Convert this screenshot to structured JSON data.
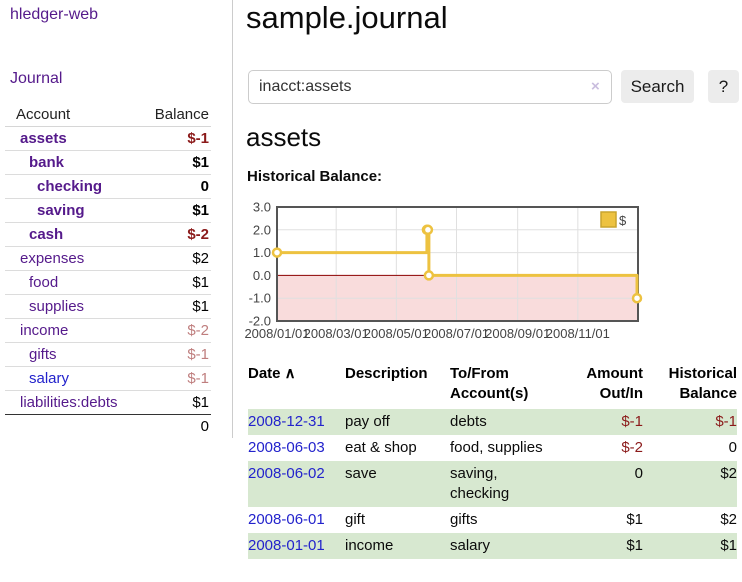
{
  "app": {
    "title": "hledger-web",
    "nav_journal": "Journal"
  },
  "colors": {
    "link_purple": "#551a8b",
    "link_blue": "#2323cc",
    "negative_strong": "#8b1a1a",
    "negative_soft": "#bf7e7e",
    "row_green": "#d7e8d0",
    "button_bg": "#ececec",
    "chart_line": "#edc240",
    "chart_line_border": "#c9a42d",
    "chart_negative_fill": "#f9dcdc",
    "chart_zero_line": "#8b0000",
    "chart_grid": "#e0e0e0",
    "chart_border": "#555555"
  },
  "sidebar": {
    "account_header": "Account",
    "balance_header": "Balance",
    "accounts": [
      {
        "name": "assets",
        "indent": 1,
        "name_style": "bold",
        "balance": "$-1",
        "balance_style": "b-neg-bold"
      },
      {
        "name": "bank",
        "indent": 2,
        "name_style": "bold",
        "balance": "$1",
        "balance_style": "b-bold"
      },
      {
        "name": "checking",
        "indent": 3,
        "name_style": "bold",
        "balance": "0",
        "balance_style": "b-bold"
      },
      {
        "name": "saving",
        "indent": 3,
        "name_style": "bold",
        "balance": "$1",
        "balance_style": "b-bold"
      },
      {
        "name": "cash",
        "indent": 2,
        "name_style": "bold",
        "balance": "$-2",
        "balance_style": "b-neg-bold"
      },
      {
        "name": "expenses",
        "indent": 1,
        "name_style": "plain",
        "balance": "$2",
        "balance_style": "b-plain"
      },
      {
        "name": "food",
        "indent": 2,
        "name_style": "plain",
        "balance": "$1",
        "balance_style": "b-plain"
      },
      {
        "name": "supplies",
        "indent": 2,
        "name_style": "plain",
        "balance": "$1",
        "balance_style": "b-plain"
      },
      {
        "name": "income",
        "indent": 1,
        "name_style": "plain",
        "balance": "$-2",
        "balance_style": "b-neg-soft"
      },
      {
        "name": "gifts",
        "indent": 2,
        "name_style": "plain",
        "balance": "$-1",
        "balance_style": "b-neg-soft"
      },
      {
        "name": "salary",
        "indent": 2,
        "name_style": "plain-blue",
        "balance": "$-1",
        "balance_style": "b-neg-soft"
      },
      {
        "name": "liabilities:debts",
        "indent": 1,
        "name_style": "plain",
        "balance": "$1",
        "balance_style": "b-plain"
      }
    ],
    "total": "0"
  },
  "main": {
    "title": "sample.journal",
    "search": {
      "value": "inacct:assets",
      "clear_icon": "×",
      "button_label": "Search",
      "help_label": "?"
    },
    "account_heading": "assets",
    "chart_heading": "Historical Balance:"
  },
  "chart_data": {
    "type": "line",
    "title": "Historical Balance",
    "legend": {
      "label": "$",
      "position": "top-right"
    },
    "x_range": [
      "2008-01-01",
      "2009-01-01"
    ],
    "ylim": [
      -2,
      3
    ],
    "yticks": [
      3.0,
      2.0,
      1.0,
      0.0,
      -1.0,
      -2.0
    ],
    "xticks": [
      {
        "date": "2008-01-01",
        "label": "2008/01/01"
      },
      {
        "date": "2008-03-01",
        "label": "2008/03/01"
      },
      {
        "date": "2008-05-01",
        "label": "2008/05/01"
      },
      {
        "date": "2008-07-01",
        "label": "2008/07/01"
      },
      {
        "date": "2008-09-01",
        "label": "2008/09/01"
      },
      {
        "date": "2008-11-01",
        "label": "2008/11/01"
      }
    ],
    "grid": true,
    "series": [
      {
        "name": "$",
        "step": true,
        "points": [
          [
            "2008-01-01",
            1
          ],
          [
            "2008-06-01",
            2
          ],
          [
            "2008-06-02",
            2
          ],
          [
            "2008-06-03",
            0
          ],
          [
            "2008-12-31",
            -1
          ]
        ]
      }
    ]
  },
  "register": {
    "columns": [
      {
        "lines": [
          "Date"
        ],
        "align": "left",
        "sortable": true,
        "sort_icon": "∧"
      },
      {
        "lines": [
          "Description"
        ],
        "align": "left"
      },
      {
        "lines": [
          "To/From",
          "Account(s)"
        ],
        "align": "left"
      },
      {
        "lines": [
          "Amount",
          "Out/In"
        ],
        "align": "right"
      },
      {
        "lines": [
          "Historical",
          "Balance"
        ],
        "align": "right"
      }
    ],
    "rows": [
      {
        "date": "2008-12-31",
        "description": "pay off",
        "accounts": [
          "debts"
        ],
        "amount": "$-1",
        "amount_style": "neg",
        "balance": "$-1",
        "balance_style": "neg"
      },
      {
        "date": "2008-06-03",
        "description": "eat & shop",
        "accounts": [
          "food, supplies"
        ],
        "amount": "$-2",
        "amount_style": "neg",
        "balance": "0",
        "balance_style": "plain"
      },
      {
        "date": "2008-06-02",
        "description": "save",
        "accounts": [
          "saving,",
          "checking"
        ],
        "amount": "0",
        "amount_style": "plain",
        "balance": "$2",
        "balance_style": "plain"
      },
      {
        "date": "2008-06-01",
        "description": "gift",
        "accounts": [
          "gifts"
        ],
        "amount": "$1",
        "amount_style": "plain",
        "balance": "$2",
        "balance_style": "plain"
      },
      {
        "date": "2008-01-01",
        "description": "income",
        "accounts": [
          "salary"
        ],
        "amount": "$1",
        "amount_style": "plain",
        "balance": "$1",
        "balance_style": "plain"
      }
    ]
  }
}
